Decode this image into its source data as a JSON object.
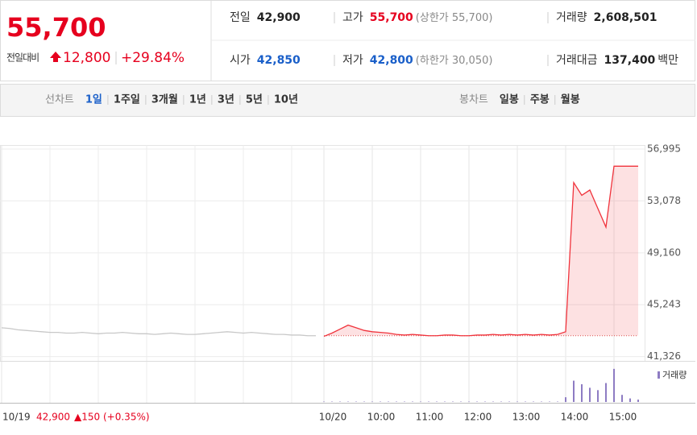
{
  "header": {
    "price": "55,700",
    "change_label": "전일대비",
    "change": "12,800",
    "change_rate": "+29.84%",
    "stats": [
      {
        "label": "전일",
        "value": "42,900",
        "color": "#222222"
      },
      {
        "label": "고가",
        "value": "55,700",
        "note": "(상한가 55,700)",
        "color": "#e6001e"
      },
      {
        "label": "거래량",
        "value": "2,608,501",
        "color": "#222222"
      },
      {
        "label": "시가",
        "value": "42,850",
        "color": "#1a5fc9"
      },
      {
        "label": "저가",
        "value": "42,800",
        "note": "(하한가 30,050)",
        "color": "#1a5fc9"
      },
      {
        "label": "거래대금",
        "value": "137,400",
        "unit": "백만",
        "color": "#222222"
      }
    ]
  },
  "tabs": {
    "line_label": "선차트",
    "line_items": [
      "1일",
      "1주일",
      "3개월",
      "1년",
      "3년",
      "5년",
      "10년"
    ],
    "candle_label": "봉차트",
    "candle_items": [
      "일봉",
      "주봉",
      "월봉"
    ]
  },
  "chart_data": {
    "type": "line",
    "categories": [
      "10/19",
      null,
      null,
      null,
      null,
      null,
      null,
      null,
      null,
      null,
      null,
      null,
      null,
      null,
      null,
      null,
      null,
      null,
      null,
      null,
      null,
      null,
      null,
      null,
      null,
      null,
      null,
      null,
      null,
      null,
      null,
      null,
      null,
      null,
      null,
      null,
      null,
      null,
      null,
      null,
      "10/20",
      null,
      null,
      null,
      null,
      null,
      "10:00",
      null,
      null,
      null,
      null,
      null,
      "11:00",
      null,
      null,
      null,
      null,
      null,
      "12:00",
      null,
      null,
      null,
      null,
      null,
      "13:00",
      null,
      null,
      null,
      null,
      null,
      "14:00",
      null,
      null,
      null,
      null,
      null,
      "15:00",
      null,
      null,
      null
    ],
    "series": [
      {
        "name": "10/19",
        "color": "#c8c8c8",
        "values": [
          43500,
          43450,
          43350,
          43300,
          43250,
          43200,
          43150,
          43150,
          43100,
          43100,
          43150,
          43100,
          43050,
          43100,
          43100,
          43150,
          43100,
          43050,
          43050,
          43000,
          43050,
          43100,
          43050,
          43000,
          43000,
          43050,
          43100,
          43150,
          43200,
          43150,
          43100,
          43150,
          43100,
          43050,
          43000,
          43000,
          42950,
          42950,
          42900,
          42900,
          null,
          null,
          null,
          null,
          null,
          null,
          null,
          null,
          null,
          null,
          null,
          null,
          null,
          null,
          null,
          null,
          null,
          null,
          null,
          null,
          null,
          null,
          null,
          null,
          null,
          null,
          null,
          null,
          null,
          null,
          null,
          null,
          null,
          null,
          null,
          null,
          null,
          null,
          null,
          null
        ]
      },
      {
        "name": "10/20",
        "color": "#f0333c",
        "values": [
          null,
          null,
          null,
          null,
          null,
          null,
          null,
          null,
          null,
          null,
          null,
          null,
          null,
          null,
          null,
          null,
          null,
          null,
          null,
          null,
          null,
          null,
          null,
          null,
          null,
          null,
          null,
          null,
          null,
          null,
          null,
          null,
          null,
          null,
          null,
          null,
          null,
          null,
          null,
          null,
          42850,
          43100,
          43400,
          43700,
          43500,
          43300,
          43200,
          43150,
          43100,
          43000,
          42950,
          43000,
          42950,
          42900,
          42900,
          42950,
          42950,
          42900,
          42900,
          42950,
          42950,
          43000,
          42950,
          43000,
          42950,
          43000,
          42950,
          43000,
          42950,
          43000,
          43200,
          54460,
          53500,
          53900,
          52500,
          51100,
          55700,
          55700,
          55700,
          55700
        ]
      }
    ],
    "volume": {
      "name": "거래량",
      "color": "#8e7cc3",
      "ylim": [
        0,
        320000
      ],
      "values": [
        null,
        null,
        null,
        null,
        null,
        null,
        null,
        null,
        null,
        null,
        null,
        null,
        null,
        null,
        null,
        null,
        null,
        null,
        null,
        null,
        null,
        null,
        null,
        null,
        null,
        null,
        null,
        null,
        null,
        null,
        null,
        null,
        null,
        null,
        null,
        null,
        null,
        null,
        null,
        null,
        3000,
        3000,
        3000,
        3000,
        3000,
        3000,
        3000,
        3000,
        3000,
        3000,
        3000,
        3000,
        3000,
        3000,
        3000,
        3000,
        3000,
        3000,
        3000,
        3000,
        3000,
        3000,
        3000,
        3000,
        3000,
        3000,
        3000,
        3000,
        3000,
        3000,
        40000,
        180000,
        150000,
        120000,
        100000,
        160000,
        280000,
        60000,
        30000,
        20000
      ]
    },
    "baseline": 42900,
    "ylim": [
      41000,
      57300
    ],
    "yticks": [
      {
        "value": 41326,
        "label": "41,326"
      },
      {
        "value": 45243,
        "label": "45,243"
      },
      {
        "value": 49160,
        "label": "49,160"
      },
      {
        "value": 53078,
        "label": "53,078"
      },
      {
        "value": 56995,
        "label": "56,995"
      }
    ],
    "prev_close": "42,900",
    "prev_change": "▲150",
    "prev_rate": "(+0.35%)",
    "grid": true
  }
}
